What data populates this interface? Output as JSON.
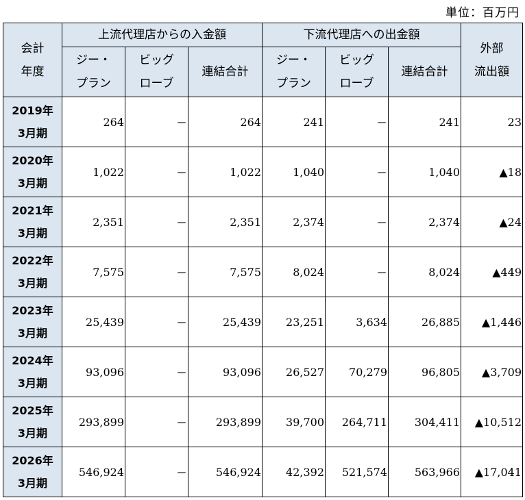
{
  "unit_label": "単位：百万円",
  "header": {
    "fiscal_year_line1": "会計",
    "fiscal_year_line2": "年度",
    "upstream_group": "上流代理店からの入金額",
    "downstream_group": "下流代理店への出金額",
    "outflow_line1": "外部",
    "outflow_line2": "流出額",
    "col_gplan_line1": "ジー・",
    "col_gplan_line2": "プラン",
    "col_big_line1": "ビッグ",
    "col_big_line2": "ローブ",
    "col_consolidated": "連結合計"
  },
  "rows": [
    {
      "year": "2019年",
      "period": "3月期",
      "up_g": "264",
      "up_b": "－",
      "up_total": "264",
      "down_g": "241",
      "down_b": "－",
      "down_total": "241",
      "outflow": "23"
    },
    {
      "year": "2020年",
      "period": "3月期",
      "up_g": "1,022",
      "up_b": "－",
      "up_total": "1,022",
      "down_g": "1,040",
      "down_b": "－",
      "down_total": "1,040",
      "outflow": "▲18"
    },
    {
      "year": "2021年",
      "period": "3月期",
      "up_g": "2,351",
      "up_b": "－",
      "up_total": "2,351",
      "down_g": "2,374",
      "down_b": "－",
      "down_total": "2,374",
      "outflow": "▲24"
    },
    {
      "year": "2022年",
      "period": "3月期",
      "up_g": "7,575",
      "up_b": "－",
      "up_total": "7,575",
      "down_g": "8,024",
      "down_b": "－",
      "down_total": "8,024",
      "outflow": "▲449"
    },
    {
      "year": "2023年",
      "period": "3月期",
      "up_g": "25,439",
      "up_b": "－",
      "up_total": "25,439",
      "down_g": "23,251",
      "down_b": "3,634",
      "down_total": "26,885",
      "outflow": "▲1,446"
    },
    {
      "year": "2024年",
      "period": "3月期",
      "up_g": "93,096",
      "up_b": "－",
      "up_total": "93,096",
      "down_g": "26,527",
      "down_b": "70,279",
      "down_total": "96,805",
      "outflow": "▲3,709"
    },
    {
      "year": "2025年",
      "period": "3月期",
      "up_g": "293,899",
      "up_b": "－",
      "up_total": "293,899",
      "down_g": "39,700",
      "down_b": "264,711",
      "down_total": "304,411",
      "outflow": "▲10,512"
    },
    {
      "year": "2026年",
      "period": "3月期",
      "up_g": "546,924",
      "up_b": "－",
      "up_total": "546,924",
      "down_g": "42,392",
      "down_b": "521,574",
      "down_total": "563,966",
      "outflow": "▲17,041"
    }
  ]
}
